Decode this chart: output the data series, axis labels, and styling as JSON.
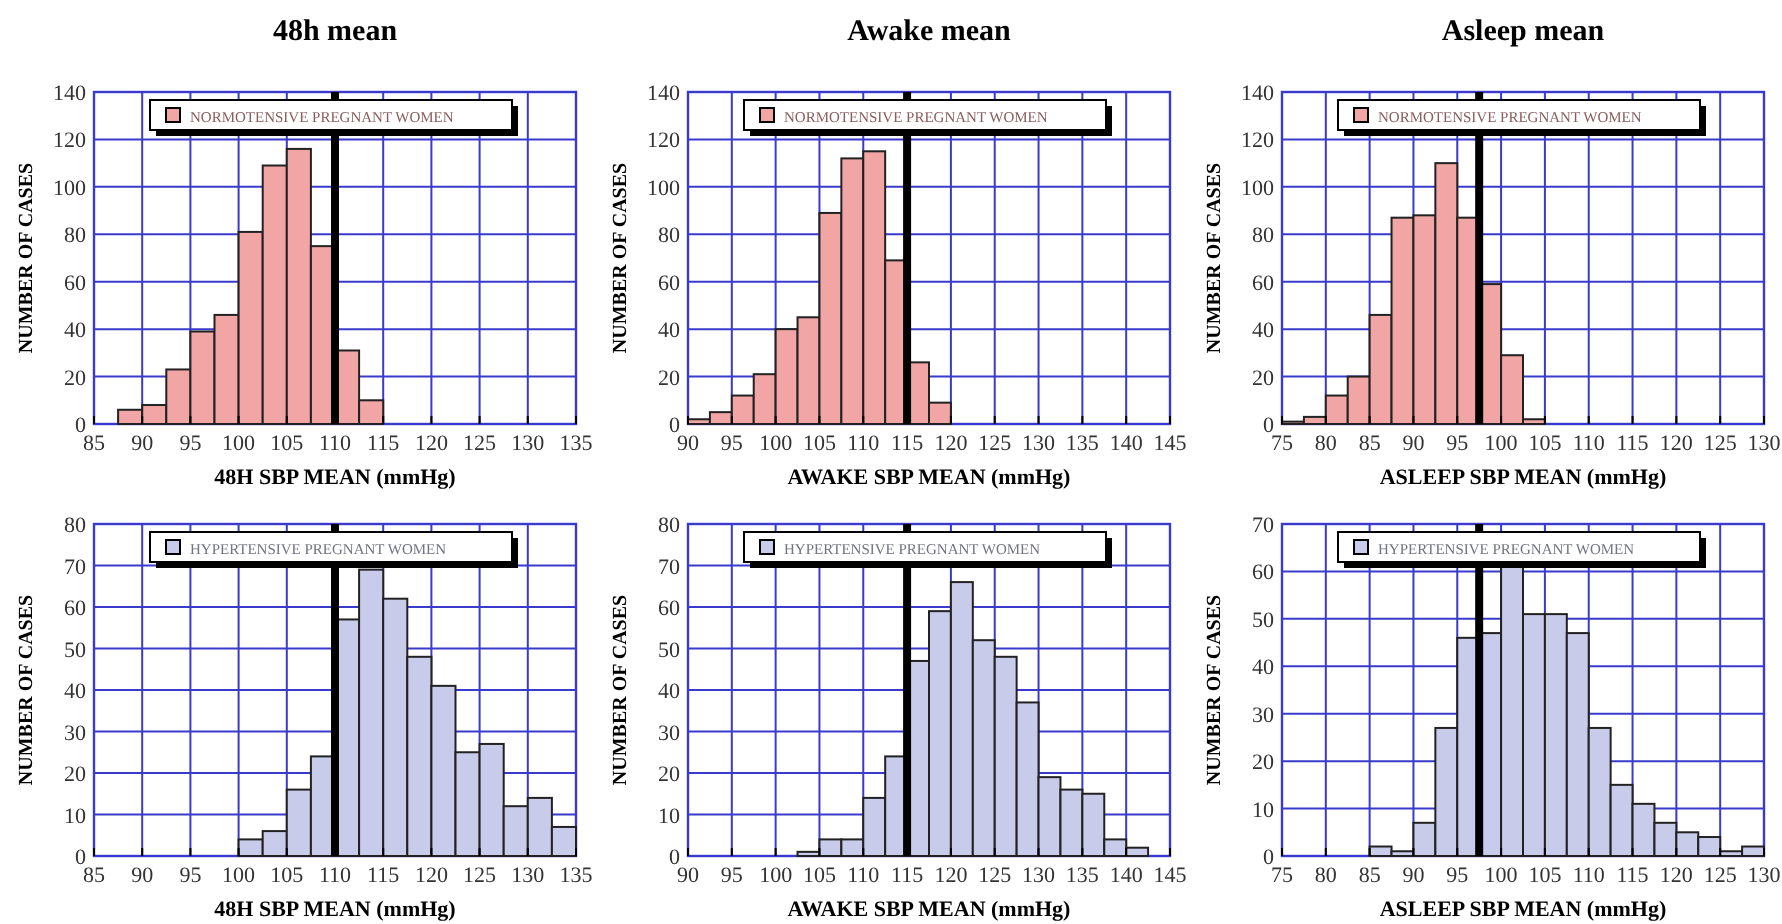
{
  "chart_data": [
    {
      "type": "histogram",
      "title": "48h mean",
      "xlabel": "48H SBP MEAN (mmHg)",
      "ylabel": "NUMBER OF CASES",
      "bins": [
        87.5,
        90,
        92.5,
        95,
        97.5,
        100,
        102.5,
        105,
        107.5,
        110,
        112.5,
        115
      ],
      "series": [
        {
          "name": "NORMOTENSIVE PREGNANT WOMEN",
          "color": "#f2a5a5",
          "values": [
            6,
            8,
            23,
            39,
            46,
            81,
            109,
            116,
            75,
            31,
            10
          ]
        }
      ],
      "xlim": [
        85,
        135
      ],
      "xticks": [
        85,
        90,
        95,
        100,
        105,
        110,
        115,
        120,
        125,
        130,
        135
      ],
      "ylim": [
        0,
        140
      ],
      "yticks": [
        0,
        20,
        40,
        60,
        80,
        100,
        120,
        140
      ],
      "ref_lines": [
        {
          "axis": "x",
          "value": 110
        }
      ],
      "grid": true,
      "legend": "top"
    },
    {
      "type": "histogram",
      "title": "Awake mean",
      "xlabel": "AWAKE SBP MEAN (mmHg)",
      "ylabel": "NUMBER OF CASES",
      "bins": [
        90,
        92.5,
        95,
        97.5,
        100,
        102.5,
        105,
        107.5,
        110,
        112.5,
        115,
        117.5,
        120
      ],
      "series": [
        {
          "name": "NORMOTENSIVE PREGNANT WOMEN",
          "color": "#f2a5a5",
          "values": [
            2,
            5,
            12,
            21,
            40,
            45,
            89,
            112,
            115,
            69,
            26,
            9
          ]
        }
      ],
      "xlim": [
        90,
        145
      ],
      "xticks": [
        90,
        95,
        100,
        105,
        110,
        115,
        120,
        125,
        130,
        135,
        140,
        145
      ],
      "ylim": [
        0,
        140
      ],
      "yticks": [
        0,
        20,
        40,
        60,
        80,
        100,
        120,
        140
      ],
      "ref_lines": [
        {
          "axis": "x",
          "value": 115
        }
      ],
      "grid": true,
      "legend": "top"
    },
    {
      "type": "histogram",
      "title": "Asleep mean",
      "xlabel": "ASLEEP SBP MEAN (mmHg)",
      "ylabel": "NUMBER OF CASES",
      "bins": [
        75,
        77.5,
        80,
        82.5,
        85,
        87.5,
        90,
        92.5,
        95,
        97.5,
        100,
        102.5,
        105
      ],
      "series": [
        {
          "name": "NORMOTENSIVE PREGNANT WOMEN",
          "color": "#f2a5a5",
          "values": [
            1,
            3,
            12,
            20,
            46,
            87,
            88,
            110,
            87,
            59,
            29,
            2
          ]
        }
      ],
      "xlim": [
        75,
        130
      ],
      "xticks": [
        75,
        80,
        85,
        90,
        95,
        100,
        105,
        110,
        115,
        120,
        125,
        130
      ],
      "ylim": [
        0,
        140
      ],
      "yticks": [
        0,
        20,
        40,
        60,
        80,
        100,
        120,
        140
      ],
      "ref_lines": [
        {
          "axis": "x",
          "value": 97.5
        }
      ],
      "grid": true,
      "legend": "top"
    },
    {
      "type": "histogram",
      "xlabel": "48H SBP MEAN (mmHg)",
      "ylabel": "NUMBER OF CASES",
      "bins": [
        100,
        102.5,
        105,
        107.5,
        110,
        112.5,
        115,
        117.5,
        120,
        122.5,
        125,
        127.5,
        130,
        132.5,
        135
      ],
      "series": [
        {
          "name": "HYPERTENSIVE PREGNANT WOMEN",
          "color": "#c9cbea",
          "values": [
            4,
            6,
            16,
            24,
            57,
            69,
            62,
            48,
            41,
            25,
            27,
            12,
            14,
            7
          ]
        }
      ],
      "xlim": [
        85,
        135
      ],
      "xticks": [
        85,
        90,
        95,
        100,
        105,
        110,
        115,
        120,
        125,
        130,
        135
      ],
      "ylim": [
        0,
        80
      ],
      "yticks": [
        0,
        10,
        20,
        30,
        40,
        50,
        60,
        70,
        80
      ],
      "ref_lines": [
        {
          "axis": "x",
          "value": 110
        }
      ],
      "grid": true,
      "legend": "top"
    },
    {
      "type": "histogram",
      "xlabel": "AWAKE SBP MEAN (mmHg)",
      "ylabel": "NUMBER OF CASES",
      "bins": [
        102.5,
        105,
        107.5,
        110,
        112.5,
        115,
        117.5,
        120,
        122.5,
        125,
        127.5,
        130,
        132.5,
        135,
        137.5,
        140,
        142.5
      ],
      "series": [
        {
          "name": "HYPERTENSIVE PREGNANT WOMEN",
          "color": "#c9cbea",
          "values": [
            1,
            4,
            4,
            14,
            24,
            47,
            59,
            66,
            52,
            48,
            37,
            19,
            16,
            15,
            4,
            2
          ]
        }
      ],
      "xlim": [
        90,
        145
      ],
      "xticks": [
        90,
        95,
        100,
        105,
        110,
        115,
        120,
        125,
        130,
        135,
        140,
        145
      ],
      "ylim": [
        0,
        80
      ],
      "yticks": [
        0,
        10,
        20,
        30,
        40,
        50,
        60,
        70,
        80
      ],
      "ref_lines": [
        {
          "axis": "x",
          "value": 115
        }
      ],
      "grid": true,
      "legend": "top"
    },
    {
      "type": "histogram",
      "xlabel": "ASLEEP SBP MEAN (mmHg)",
      "ylabel": "NUMBER OF CASES",
      "bins": [
        85,
        87.5,
        90,
        92.5,
        95,
        97.5,
        100,
        102.5,
        105,
        107.5,
        110,
        112.5,
        115,
        117.5,
        120,
        122.5,
        125,
        127.5,
        130
      ],
      "series": [
        {
          "name": "HYPERTENSIVE PREGNANT WOMEN",
          "color": "#c9cbea",
          "values": [
            2,
            1,
            7,
            27,
            46,
            47,
            61,
            51,
            51,
            47,
            27,
            15,
            11,
            7,
            5,
            4,
            1,
            2
          ]
        }
      ],
      "xlim": [
        75,
        130
      ],
      "xticks": [
        75,
        80,
        85,
        90,
        95,
        100,
        105,
        110,
        115,
        120,
        125,
        130
      ],
      "ylim": [
        0,
        70
      ],
      "yticks": [
        0,
        10,
        20,
        30,
        40,
        50,
        60,
        70
      ],
      "ref_lines": [
        {
          "axis": "x",
          "value": 97.5
        }
      ],
      "grid": true,
      "legend": "top"
    }
  ]
}
